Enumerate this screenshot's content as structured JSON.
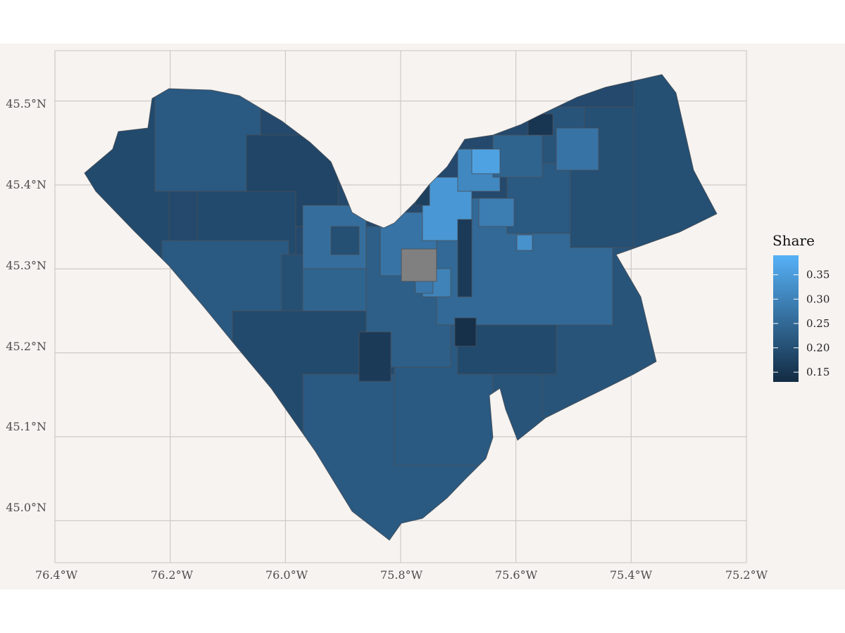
{
  "colors": {
    "plot_background": "#f6f3f0",
    "page_background": "#ffffff",
    "grid": "#c9c6c4",
    "tick_text": "#4d4d4d",
    "region_border": "#4a4f57",
    "na_fill": "#808080",
    "scale_low": "#132b43",
    "scale_high": "#56b1f7"
  },
  "chart_data": {
    "type": "choropleth",
    "xlim": [
      -76.4,
      -75.2
    ],
    "ylim": [
      44.95,
      45.56
    ],
    "x_ticks": [
      -76.4,
      -76.2,
      -76.0,
      -75.8,
      -75.6,
      -75.4,
      -75.2
    ],
    "y_ticks": [
      45.0,
      45.1,
      45.2,
      45.3,
      45.4,
      45.5
    ],
    "x_tick_labels": [
      "76.4°W",
      "76.2°W",
      "76.0°W",
      "75.8°W",
      "75.6°W",
      "75.4°W",
      "75.2°W"
    ],
    "y_tick_labels": [
      "45.0°N",
      "45.1°N",
      "45.2°N",
      "45.3°N",
      "45.4°N",
      "45.5°N"
    ],
    "grid": true,
    "legend": {
      "title": "Share",
      "position": "right",
      "limits": [
        0.13,
        0.39
      ],
      "breaks": [
        0.15,
        0.2,
        0.25,
        0.3,
        0.35
      ],
      "labels": [
        "0.15",
        "0.20",
        "0.25",
        "0.30",
        "0.35"
      ]
    },
    "regions": [
      {
        "lon": -76.18,
        "lat": 45.36,
        "value": 0.19
      },
      {
        "lon": -76.14,
        "lat": 45.47,
        "value": 0.22
      },
      {
        "lon": -76.05,
        "lat": 45.39,
        "value": 0.18
      },
      {
        "lon": -76.03,
        "lat": 45.33,
        "value": 0.19
      },
      {
        "lon": -76.12,
        "lat": 45.27,
        "value": 0.22
      },
      {
        "lon": -75.98,
        "lat": 45.29,
        "value": 0.2
      },
      {
        "lon": -75.98,
        "lat": 45.17,
        "value": 0.19
      },
      {
        "lon": -75.78,
        "lat": 45.06,
        "value": 0.22
      },
      {
        "lon": -75.67,
        "lat": 45.15,
        "value": 0.22
      },
      {
        "lon": -75.81,
        "lat": 45.26,
        "value": 0.23
      },
      {
        "lon": -75.52,
        "lat": 45.14,
        "value": 0.21
      },
      {
        "lon": -75.42,
        "lat": 45.22,
        "value": 0.21
      },
      {
        "lon": -75.58,
        "lat": 45.23,
        "value": 0.19
      },
      {
        "lon": -75.57,
        "lat": 45.32,
        "value": 0.25
      },
      {
        "lon": -75.51,
        "lat": 45.39,
        "value": 0.22
      },
      {
        "lon": -75.4,
        "lat": 45.38,
        "value": 0.2
      },
      {
        "lon": -75.3,
        "lat": 45.43,
        "value": 0.2
      },
      {
        "lon": -75.86,
        "lat": 45.31,
        "value": 0.26
      },
      {
        "lon": -75.91,
        "lat": 45.28,
        "value": 0.24
      },
      {
        "lon": -75.83,
        "lat": 45.2,
        "value": 0.16
      },
      {
        "lon": -75.69,
        "lat": 45.24,
        "value": 0.14
      },
      {
        "lon": -75.78,
        "lat": 45.33,
        "value": 0.27
      },
      {
        "lon": -75.72,
        "lat": 45.38,
        "value": 0.34
      },
      {
        "lon": -75.67,
        "lat": 45.41,
        "value": 0.31
      },
      {
        "lon": -75.61,
        "lat": 45.45,
        "value": 0.24
      },
      {
        "lon": -75.54,
        "lat": 45.44,
        "value": 0.21
      },
      {
        "lon": -75.47,
        "lat": 45.46,
        "value": 0.27
      },
      {
        "lon": -75.69,
        "lat": 45.43,
        "value": 0.36
      },
      {
        "lon": -75.76,
        "lat": 45.38,
        "value": 0.17
      },
      {
        "lon": -75.59,
        "lat": 45.38,
        "value": 0.29
      },
      {
        "lon": -75.71,
        "lat": 45.31,
        "value": 0.3
      },
      {
        "lon": -75.64,
        "lat": 45.34,
        "value": 0.16
      },
      {
        "lon": -75.52,
        "lat": 45.48,
        "value": 0.15
      },
      {
        "lon": -75.56,
        "lat": 45.32,
        "value": 0.33
      },
      {
        "lon": -75.89,
        "lat": 45.34,
        "value": 0.2
      },
      {
        "lon": -75.84,
        "lat": 45.26,
        "value": 0.28
      },
      {
        "lon": -75.76,
        "lat": 45.3,
        "value": null
      }
    ]
  }
}
